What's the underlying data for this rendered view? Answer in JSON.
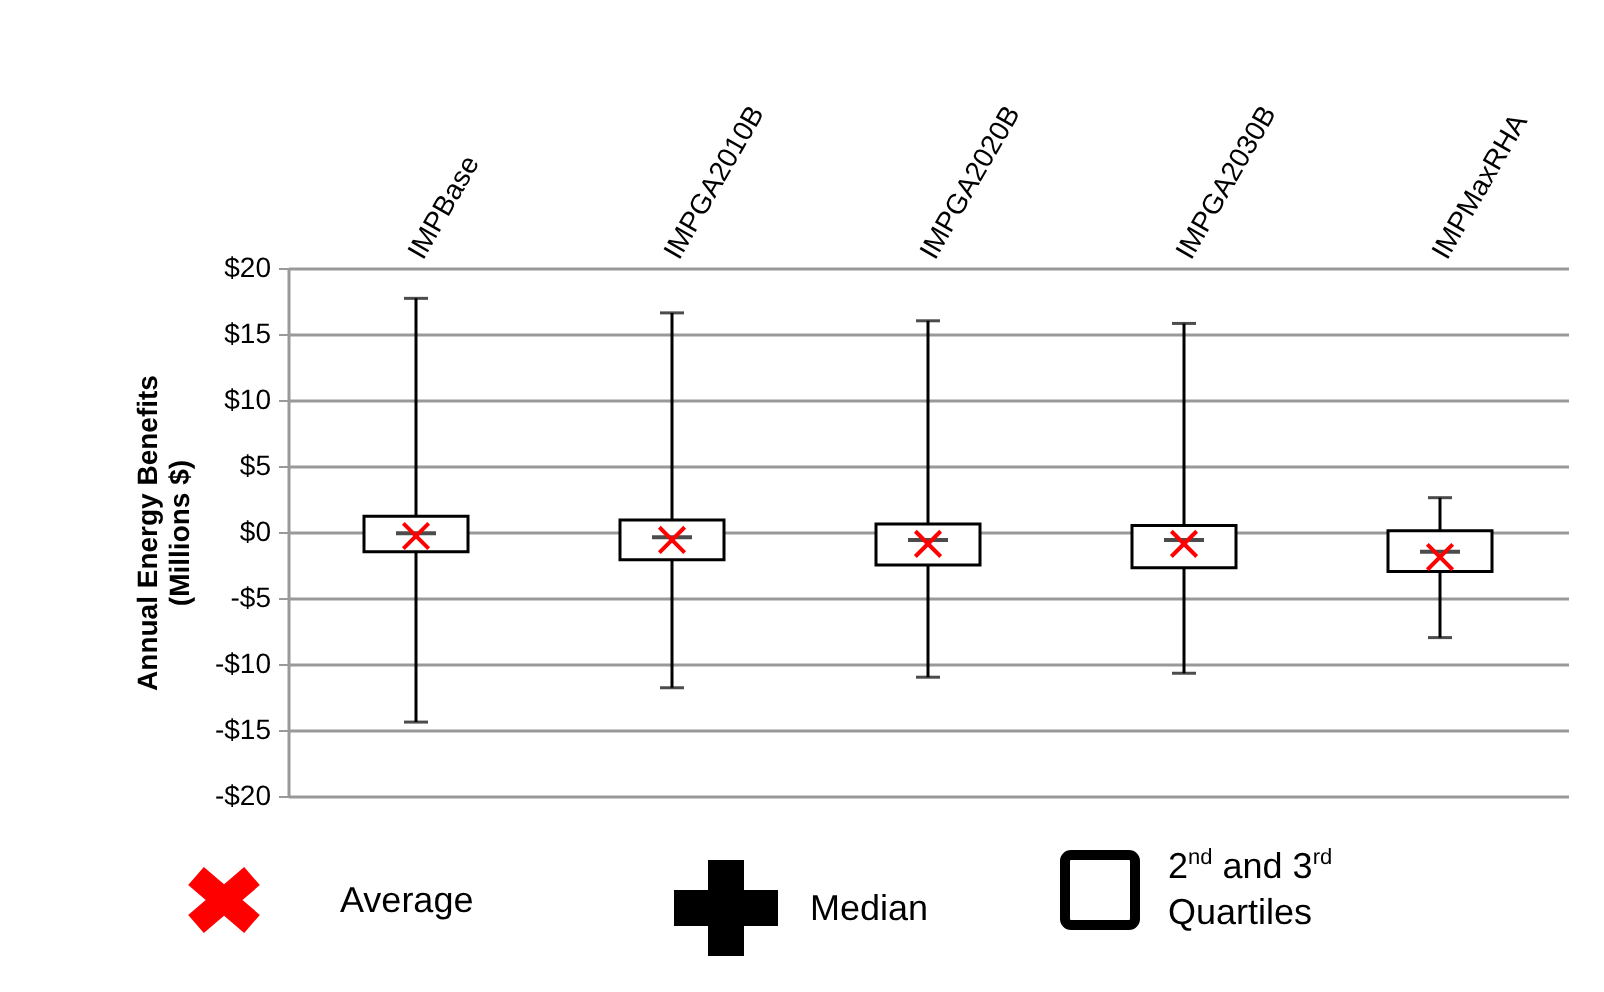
{
  "chart_data": {
    "type": "box",
    "categories": [
      "IMPBase",
      "IMPGA2010B",
      "IMPGA2020B",
      "IMPGA2030B",
      "IMPMaxRHA"
    ],
    "boxes": [
      {
        "low": -14.4,
        "q1": -1.5,
        "median": -0.1,
        "q3": 1.2,
        "high": 17.7,
        "mean": -0.3
      },
      {
        "low": -11.8,
        "q1": -2.1,
        "median": -0.4,
        "q3": 0.9,
        "high": 16.6,
        "mean": -0.6
      },
      {
        "low": -11.0,
        "q1": -2.5,
        "median": -0.6,
        "q3": 0.6,
        "high": 16.0,
        "mean": -0.9
      },
      {
        "low": -10.7,
        "q1": -2.7,
        "median": -0.6,
        "q3": 0.5,
        "high": 15.8,
        "mean": -0.9
      },
      {
        "low": -8.0,
        "q1": -3.0,
        "median": -1.5,
        "q3": 0.1,
        "high": 2.6,
        "mean": -1.9
      }
    ],
    "ylabel": "Annual  Energy  Benefits\n(Millions $)",
    "ylim": [
      -20,
      20
    ],
    "yticks": [
      {
        "value": -20,
        "label": "-$20"
      },
      {
        "value": -15,
        "label": "-$15"
      },
      {
        "value": -10,
        "label": "-$10"
      },
      {
        "value": -5,
        "label": "-$5"
      },
      {
        "value": 0,
        "label": "$0"
      },
      {
        "value": 5,
        "label": "$5"
      },
      {
        "value": 10,
        "label": "$10"
      },
      {
        "value": 15,
        "label": "$15"
      },
      {
        "value": 20,
        "label": "$20"
      }
    ],
    "grid": "y",
    "annotations": [
      "Average",
      "Median",
      "2$^{nd}$ and 3$^{rd}$ Quartiles"
    ]
  }
}
